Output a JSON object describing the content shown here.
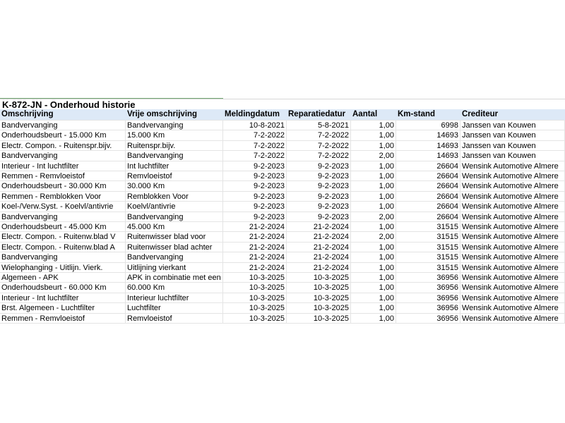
{
  "title": "K-872-JN - Onderhoud historie",
  "table": {
    "headers": [
      "Omschrijving",
      "Vrije omschrijving",
      "Meldingdatum",
      "Reparatiedatur",
      "Aantal",
      "Km-stand",
      "Crediteur"
    ],
    "rows": [
      [
        "Bandvervanging",
        "Bandvervanging",
        "10-8-2021",
        "5-8-2021",
        "1,00",
        "6998",
        "Janssen van Kouwen"
      ],
      [
        "Onderhoudsbeurt - 15.000 Km",
        "15.000 Km",
        "7-2-2022",
        "7-2-2022",
        "1,00",
        "14693",
        "Janssen van Kouwen"
      ],
      [
        "Electr. Compon. - Ruitenspr.bijv.",
        "Ruitenspr.bijv.",
        "7-2-2022",
        "7-2-2022",
        "1,00",
        "14693",
        "Janssen van Kouwen"
      ],
      [
        "Bandvervanging",
        "Bandvervanging",
        "7-2-2022",
        "7-2-2022",
        "2,00",
        "14693",
        "Janssen van Kouwen"
      ],
      [
        "Interieur - Int luchtfilter",
        "Int luchtfilter",
        "9-2-2023",
        "9-2-2023",
        "1,00",
        "26604",
        "Wensink Automotive Almere"
      ],
      [
        "Remmen - Remvloeistof",
        "Remvloeistof",
        "9-2-2023",
        "9-2-2023",
        "1,00",
        "26604",
        "Wensink Automotive Almere"
      ],
      [
        "Onderhoudsbeurt - 30.000 Km",
        "30.000 Km",
        "9-2-2023",
        "9-2-2023",
        "1,00",
        "26604",
        "Wensink Automotive Almere"
      ],
      [
        "Remmen - Remblokken Voor",
        "Remblokken Voor",
        "9-2-2023",
        "9-2-2023",
        "1,00",
        "26604",
        "Wensink Automotive Almere"
      ],
      [
        "Koel-/Verw.Syst. - Koelvl/antivrie",
        "Koelvl/antivrie",
        "9-2-2023",
        "9-2-2023",
        "1,00",
        "26604",
        "Wensink Automotive Almere"
      ],
      [
        "Bandvervanging",
        "Bandvervanging",
        "9-2-2023",
        "9-2-2023",
        "2,00",
        "26604",
        "Wensink Automotive Almere"
      ],
      [
        "Onderhoudsbeurt - 45.000 Km",
        "45.000 Km",
        "21-2-2024",
        "21-2-2024",
        "1,00",
        "31515",
        "Wensink Automotive Almere"
      ],
      [
        "Electr. Compon. - Ruitenw.blad V",
        "Ruitenwisser blad voor",
        "21-2-2024",
        "21-2-2024",
        "2,00",
        "31515",
        "Wensink Automotive Almere"
      ],
      [
        "Electr. Compon. - Ruitenw.blad A",
        "Ruitenwisser blad achter",
        "21-2-2024",
        "21-2-2024",
        "1,00",
        "31515",
        "Wensink Automotive Almere"
      ],
      [
        "Bandvervanging",
        "Bandvervanging",
        "21-2-2024",
        "21-2-2024",
        "1,00",
        "31515",
        "Wensink Automotive Almere"
      ],
      [
        "Wielophanging - Uitlijn. Vierk.",
        "Uitlijning vierkant",
        "21-2-2024",
        "21-2-2024",
        "1,00",
        "31515",
        "Wensink Automotive Almere"
      ],
      [
        "Algemeen - APK",
        "APK in combinatie met een",
        "10-3-2025",
        "10-3-2025",
        "1,00",
        "36956",
        "Wensink Automotive Almere"
      ],
      [
        "Onderhoudsbeurt - 60.000 Km",
        "60.000 Km",
        "10-3-2025",
        "10-3-2025",
        "1,00",
        "36956",
        "Wensink Automotive Almere"
      ],
      [
        "Interieur - Int luchtfilter",
        "Interieur luchtfilter",
        "10-3-2025",
        "10-3-2025",
        "1,00",
        "36956",
        "Wensink Automotive Almere"
      ],
      [
        "Brst. Algemeen - Luchtfilter",
        "Luchtfilter",
        "10-3-2025",
        "10-3-2025",
        "1,00",
        "36956",
        "Wensink Automotive Almere"
      ],
      [
        "Remmen - Remvloeistof",
        "Remvloeistof",
        "10-3-2025",
        "10-3-2025",
        "1,00",
        "36956",
        "Wensink Automotive Almere"
      ]
    ]
  }
}
